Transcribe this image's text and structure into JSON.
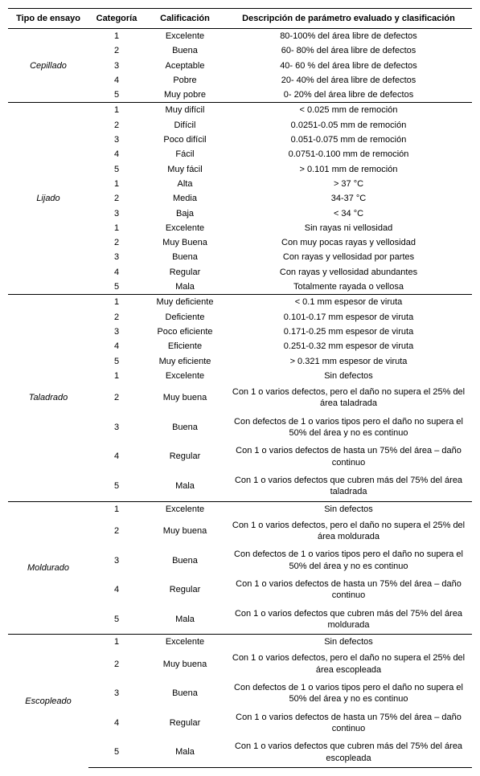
{
  "headers": {
    "tipo": "Tipo de ensayo",
    "categoria": "Categoría",
    "calificacion": "Calificación",
    "descripcion": "Descripción de parámetro evaluado y clasificación"
  },
  "groups": [
    {
      "name": "Cepillado",
      "subgroups": [
        {
          "rows": [
            {
              "cat": "1",
              "cal": "Excelente",
              "desc": "80-100% del área libre de defectos"
            },
            {
              "cat": "2",
              "cal": "Buena",
              "desc": "60- 80% del área libre de defectos"
            },
            {
              "cat": "3",
              "cal": "Aceptable",
              "desc": "40- 60 % del área libre de defectos"
            },
            {
              "cat": "4",
              "cal": "Pobre",
              "desc": "20- 40% del área libre de defectos"
            },
            {
              "cat": "5",
              "cal": "Muy pobre",
              "desc": "0- 20% del área libre de defectos"
            }
          ]
        }
      ]
    },
    {
      "name": "Lijado",
      "subgroups": [
        {
          "rows": [
            {
              "cat": "1",
              "cal": "Muy difícil",
              "desc": "< 0.025 mm de remoción"
            },
            {
              "cat": "2",
              "cal": "Difícil",
              "desc": "0.0251-0.05 mm de remoción"
            },
            {
              "cat": "3",
              "cal": "Poco difícil",
              "desc": "0.051-0.075 mm de remoción"
            },
            {
              "cat": "4",
              "cal": "Fácil",
              "desc": "0.0751-0.100 mm de remoción"
            },
            {
              "cat": "5",
              "cal": "Muy fácil",
              "desc": "> 0.101 mm de remoción"
            }
          ]
        },
        {
          "rows": [
            {
              "cat": "1",
              "cal": "Alta",
              "desc": "> 37 °C"
            },
            {
              "cat": "2",
              "cal": "Media",
              "desc": "34-37 °C"
            },
            {
              "cat": "3",
              "cal": "Baja",
              "desc": "< 34 °C"
            }
          ]
        },
        {
          "rows": [
            {
              "cat": "1",
              "cal": "Excelente",
              "desc": "Sin rayas ni vellosidad"
            },
            {
              "cat": "2",
              "cal": "Muy Buena",
              "desc": "Con muy pocas rayas y vellosidad"
            },
            {
              "cat": "3",
              "cal": "Buena",
              "desc": "Con rayas y vellosidad por partes"
            },
            {
              "cat": "4",
              "cal": "Regular",
              "desc": "Con rayas y vellosidad abundantes"
            },
            {
              "cat": "5",
              "cal": "Mala",
              "desc": "Totalmente rayada o vellosa"
            }
          ]
        }
      ]
    },
    {
      "name": "Taladrado",
      "subgroups": [
        {
          "rows": [
            {
              "cat": "1",
              "cal": "Muy deficiente",
              "desc": "< 0.1 mm espesor de viruta"
            },
            {
              "cat": "2",
              "cal": "Deficiente",
              "desc": "0.101-0.17 mm espesor de viruta"
            },
            {
              "cat": "3",
              "cal": "Poco eficiente",
              "desc": "0.171-0.25 mm espesor de viruta"
            },
            {
              "cat": "4",
              "cal": "Eficiente",
              "desc": "0.251-0.32 mm espesor de viruta"
            },
            {
              "cat": "5",
              "cal": "Muy eficiente",
              "desc": "> 0.321 mm espesor de viruta"
            }
          ]
        },
        {
          "rows": [
            {
              "cat": "1",
              "cal": "Excelente",
              "desc": "Sin defectos"
            },
            {
              "cat": "2",
              "cal": "Muy buena",
              "desc": "Con 1 o varios defectos, pero el daño no supera el 25% del área taladrada",
              "tall": true
            },
            {
              "cat": "3",
              "cal": "Buena",
              "desc": "Con defectos de 1 o varios tipos pero el daño no supera el 50% del área y no es continuo",
              "tall": true
            },
            {
              "cat": "4",
              "cal": "Regular",
              "desc": "Con 1 o varios defectos de hasta un 75% del área – daño continuo",
              "tall": true
            },
            {
              "cat": "5",
              "cal": "Mala",
              "desc": "Con 1 o varios defectos que cubren más del 75% del área taladrada",
              "tall": true
            }
          ]
        }
      ]
    },
    {
      "name": "Moldurado",
      "subgroups": [
        {
          "rows": [
            {
              "cat": "1",
              "cal": "Excelente",
              "desc": "Sin defectos"
            },
            {
              "cat": "2",
              "cal": "Muy buena",
              "desc": "Con 1 o varios defectos, pero el daño no supera el 25% del área moldurada",
              "tall": true
            },
            {
              "cat": "3",
              "cal": "Buena",
              "desc": "Con defectos de 1 o varios tipos pero el daño no supera el 50% del área y no es continuo",
              "tall": true
            },
            {
              "cat": "4",
              "cal": "Regular",
              "desc": "Con 1 o varios defectos de hasta un 75% del área – daño continuo",
              "tall": true
            },
            {
              "cat": "5",
              "cal": "Mala",
              "desc": "Con 1 o varios defectos que cubren más del 75% del área moldurada",
              "tall": true
            }
          ]
        }
      ]
    },
    {
      "name": "Escopleado",
      "subgroups": [
        {
          "rows": [
            {
              "cat": "1",
              "cal": "Excelente",
              "desc": "Sin defectos"
            },
            {
              "cat": "2",
              "cal": "Muy buena",
              "desc": "Con 1 o varios defectos, pero el daño no supera el 25% del área escopleada",
              "tall": true
            },
            {
              "cat": "3",
              "cal": "Buena",
              "desc": "Con defectos de 1 o varios tipos pero el daño no supera el 50% del área y no es continuo",
              "tall": true
            },
            {
              "cat": "4",
              "cal": "Regular",
              "desc": "Con 1 o varios defectos de hasta un 75% del área – daño continuo",
              "tall": true
            },
            {
              "cat": "5",
              "cal": "Mala",
              "desc": "Con 1 o varios defectos que cubren más del 75% del área escopleada",
              "tall": true
            }
          ]
        }
      ]
    }
  ]
}
